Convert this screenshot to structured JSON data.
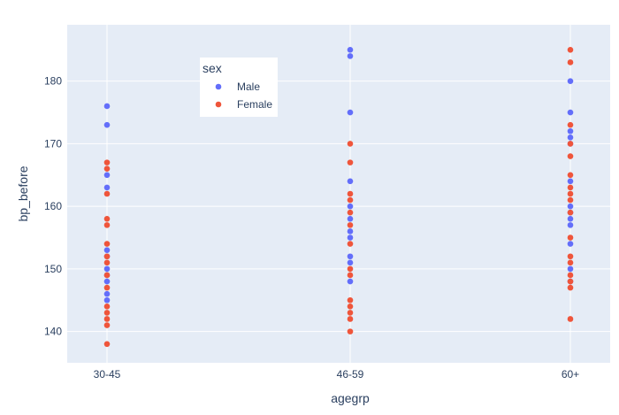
{
  "chart_data": {
    "type": "scatter",
    "xlabel": "agegrp",
    "ylabel": "bp_before",
    "categories": [
      "30-45",
      "46-59",
      "60+"
    ],
    "ylim": [
      135,
      189
    ],
    "yticks": [
      140,
      150,
      160,
      170,
      180
    ],
    "grid": true,
    "legend": {
      "title": "sex",
      "placement": "top-left"
    },
    "series": [
      {
        "name": "Male",
        "color": "#636efa",
        "points": {
          "30-45": [
            176,
            173,
            165,
            163,
            153,
            152,
            150,
            149,
            148,
            146,
            145
          ],
          "46-59": [
            185,
            184,
            175,
            164,
            160,
            158,
            156,
            155,
            152,
            151,
            148
          ],
          "60+": [
            180,
            175,
            172,
            171,
            170,
            164,
            160,
            159,
            158,
            157,
            154,
            150,
            148
          ]
        }
      },
      {
        "name": "Female",
        "color": "#ef553b",
        "points": {
          "30-45": [
            167,
            166,
            162,
            158,
            157,
            154,
            152,
            151,
            149,
            147,
            144,
            143,
            142,
            141,
            138
          ],
          "46-59": [
            170,
            167,
            162,
            161,
            159,
            157,
            154,
            150,
            149,
            145,
            144,
            143,
            142,
            140
          ],
          "60+": [
            185,
            183,
            173,
            170,
            168,
            165,
            163,
            162,
            161,
            159,
            155,
            152,
            151,
            149,
            148,
            147,
            142
          ]
        }
      }
    ]
  }
}
